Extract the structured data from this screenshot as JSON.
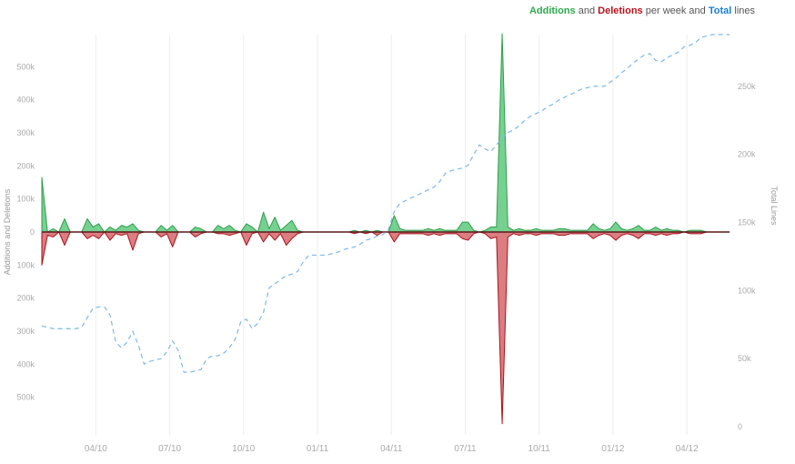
{
  "legend": {
    "additions": "Additions",
    "and": "and",
    "deletions": "Deletions",
    "per_week_and": "per week and",
    "total": "Total",
    "lines": "lines"
  },
  "colors": {
    "additions_fill": "#6fcf8b",
    "additions_stroke": "#2e9e4a",
    "deletions_fill": "#d9767a",
    "deletions_stroke": "#a8121b",
    "total_line": "#7fb8e6",
    "grid": "#eeeeee",
    "axis_text": "#aaaaaa"
  },
  "chart_data": {
    "type": "area",
    "xlabel": "",
    "ylabel_left": "Additions and Deletions",
    "ylabel_right": "Total Lines",
    "x_tick_labels": [
      "04/10",
      "07/10",
      "10/10",
      "01/11",
      "04/11",
      "07/11",
      "10/11",
      "01/12",
      "04/12"
    ],
    "x_tick_weeks": [
      9.5,
      22.5,
      35.5,
      48.5,
      61.5,
      74.5,
      87.5,
      100.5,
      113.5
    ],
    "left_ylim": [
      -580000,
      580000
    ],
    "left_tick_values": [
      500000,
      400000,
      300000,
      200000,
      100000,
      0,
      -100000,
      -200000,
      -300000,
      -400000,
      -500000
    ],
    "left_tick_labels": [
      "500k",
      "400k",
      "300k",
      "200k",
      "100k",
      "0",
      "100k",
      "200k",
      "300k",
      "400k",
      "500k"
    ],
    "right_ylim": [
      0,
      288000
    ],
    "right_tick_values": [
      0,
      50000,
      100000,
      150000,
      200000,
      250000
    ],
    "right_tick_labels": [
      "0",
      "50k",
      "100k",
      "150k",
      "200k",
      "250k"
    ],
    "grid_vertical": true,
    "legend_position": "top-right",
    "weeks": 122,
    "series": [
      {
        "name": "Additions",
        "axis": "left",
        "values": [
          165000,
          0,
          10000,
          0,
          40000,
          0,
          0,
          0,
          40000,
          15000,
          25000,
          0,
          15000,
          5000,
          20000,
          15000,
          25000,
          5000,
          0,
          0,
          0,
          20000,
          5000,
          20000,
          0,
          0,
          0,
          15000,
          10000,
          0,
          0,
          20000,
          10000,
          20000,
          5000,
          0,
          25000,
          15000,
          0,
          60000,
          10000,
          45000,
          5000,
          20000,
          35000,
          5000,
          0,
          0,
          0,
          0,
          0,
          0,
          0,
          0,
          0,
          5000,
          0,
          5000,
          0,
          5000,
          0,
          0,
          50000,
          10000,
          5000,
          5000,
          5000,
          5000,
          10000,
          5000,
          10000,
          5000,
          5000,
          5000,
          30000,
          30000,
          5000,
          0,
          5000,
          15000,
          15000,
          600000,
          15000,
          5000,
          10000,
          5000,
          5000,
          10000,
          5000,
          5000,
          5000,
          10000,
          10000,
          5000,
          5000,
          5000,
          5000,
          25000,
          10000,
          5000,
          10000,
          30000,
          10000,
          5000,
          10000,
          20000,
          5000,
          5000,
          15000,
          5000,
          10000,
          5000,
          5000,
          0,
          5000,
          5000,
          5000,
          0,
          0,
          0,
          0,
          0
        ],
        "series_note_ignore": 0
      },
      {
        "name": "Deletions",
        "axis": "left",
        "values": [
          -100000,
          -10000,
          -15000,
          0,
          -40000,
          0,
          0,
          0,
          -20000,
          -10000,
          -20000,
          0,
          -25000,
          -5000,
          -10000,
          -5000,
          -55000,
          -5000,
          0,
          0,
          0,
          -15000,
          -5000,
          -45000,
          0,
          0,
          0,
          -15000,
          -5000,
          0,
          0,
          -5000,
          -5000,
          -10000,
          -5000,
          0,
          -40000,
          -5000,
          0,
          -30000,
          -5000,
          -25000,
          -5000,
          -40000,
          -20000,
          -5000,
          0,
          0,
          0,
          0,
          0,
          0,
          0,
          0,
          0,
          -5000,
          0,
          -5000,
          0,
          -10000,
          0,
          0,
          -30000,
          -5000,
          -5000,
          -5000,
          -5000,
          -5000,
          -10000,
          -5000,
          -10000,
          -5000,
          -5000,
          -5000,
          -20000,
          -25000,
          -5000,
          0,
          -5000,
          -20000,
          -15000,
          -580000,
          -15000,
          -5000,
          -10000,
          -5000,
          -5000,
          -10000,
          -5000,
          -5000,
          -5000,
          -10000,
          -10000,
          -5000,
          -5000,
          -5000,
          -5000,
          -20000,
          -10000,
          -5000,
          -10000,
          -25000,
          -10000,
          -5000,
          -10000,
          -20000,
          -5000,
          -5000,
          -10000,
          -5000,
          -10000,
          -5000,
          -5000,
          0,
          -5000,
          -5000,
          -5000,
          0,
          0,
          0,
          0,
          0
        ]
      },
      {
        "name": "Total",
        "axis": "right",
        "values": [
          74000,
          73000,
          72000,
          72000,
          72000,
          72000,
          72000,
          73000,
          80000,
          87000,
          88000,
          88000,
          82000,
          62000,
          58000,
          62000,
          70000,
          60000,
          46000,
          48000,
          49000,
          50000,
          55000,
          63000,
          56000,
          40000,
          40000,
          41000,
          42000,
          50000,
          52000,
          52000,
          54000,
          58000,
          64000,
          77000,
          79000,
          72000,
          76000,
          84000,
          102000,
          105000,
          108000,
          111000,
          112000,
          114000,
          121000,
          126000,
          126000,
          126000,
          126000,
          127000,
          128000,
          130000,
          131000,
          132000,
          134000,
          137000,
          138000,
          140000,
          141000,
          145000,
          158000,
          164000,
          166000,
          168000,
          170000,
          172000,
          174000,
          176000,
          180000,
          186000,
          188000,
          189000,
          190000,
          192000,
          200000,
          207000,
          204000,
          202000,
          207000,
          212000,
          216000,
          218000,
          221000,
          225000,
          228000,
          230000,
          232000,
          235000,
          237000,
          240000,
          242000,
          244000,
          246000,
          248000,
          249000,
          250000,
          250000,
          250000,
          253000,
          256000,
          260000,
          263000,
          267000,
          270000,
          273000,
          274000,
          269000,
          268000,
          271000,
          273000,
          275000,
          279000,
          280000,
          282000,
          286000,
          287000,
          288000,
          288000,
          288000,
          288000
        ]
      }
    ]
  }
}
